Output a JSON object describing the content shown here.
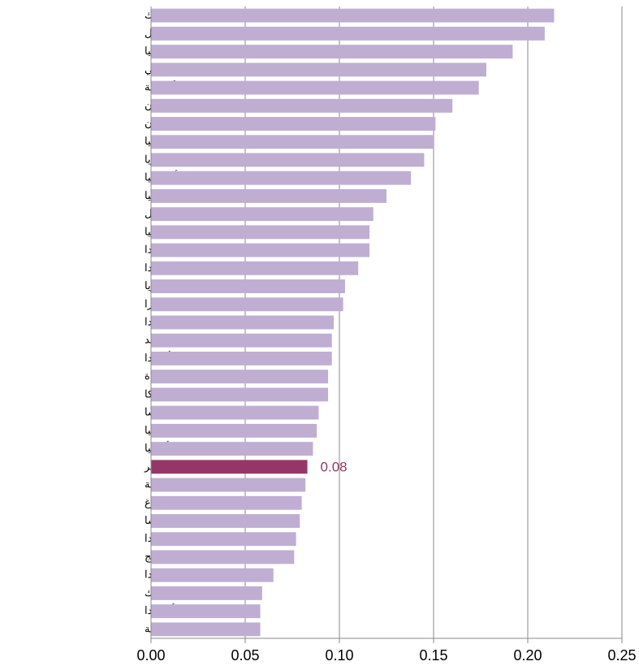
{
  "chart_data": {
    "type": "barh",
    "categories": [
      "المكسيك",
      "اسرائيل",
      "تركيا",
      "تشيلي",
      "الولايات المتحدة الأمريكية",
      "اليابان",
      "اليونان",
      "إسبانيا",
      "كوريا",
      "أستراليا",
      "إيطاليا",
      "البرتغال",
      "استونيا",
      "كندا",
      "بولندا",
      "هنغاريا",
      "سويسرا",
      "نيوزيلندا",
      "السويد",
      "أيرلندا",
      "المملكة المتحدة",
      "بلجيكا",
      "النمسا",
      "سلوفينيا",
      "ألمانيا",
      "قطر",
      "الجمهورية السلوفاكية",
      "لوكسمبورغ",
      "فرنسا",
      "هولندا",
      "النرويج",
      "فنلندا",
      "الدنمارك",
      "أيسلندا",
      "الجمهورية التشيكية"
    ],
    "values": [
      0.214,
      0.209,
      0.192,
      0.178,
      0.174,
      0.16,
      0.151,
      0.15,
      0.145,
      0.138,
      0.125,
      0.118,
      0.116,
      0.116,
      0.11,
      0.103,
      0.102,
      0.097,
      0.096,
      0.096,
      0.094,
      0.094,
      0.089,
      0.088,
      0.086,
      0.083,
      0.082,
      0.08,
      0.079,
      0.077,
      0.076,
      0.065,
      0.059,
      0.058,
      0.058
    ],
    "colors": [
      "#bfaed2",
      "#bfaed2",
      "#bfaed2",
      "#bfaed2",
      "#bfaed2",
      "#bfaed2",
      "#bfaed2",
      "#bfaed2",
      "#bfaed2",
      "#bfaed2",
      "#bfaed2",
      "#bfaed2",
      "#bfaed2",
      "#bfaed2",
      "#bfaed2",
      "#bfaed2",
      "#bfaed2",
      "#bfaed2",
      "#bfaed2",
      "#bfaed2",
      "#bfaed2",
      "#bfaed2",
      "#bfaed2",
      "#bfaed2",
      "#bfaed2",
      "#943767",
      "#bfaed2",
      "#bfaed2",
      "#bfaed2",
      "#bfaed2",
      "#bfaed2",
      "#bfaed2",
      "#bfaed2",
      "#bfaed2",
      "#bfaed2"
    ],
    "value_labels": [
      null,
      null,
      null,
      null,
      null,
      null,
      null,
      null,
      null,
      null,
      null,
      null,
      null,
      null,
      null,
      null,
      null,
      null,
      null,
      null,
      null,
      null,
      null,
      null,
      null,
      "0.08",
      null,
      null,
      null,
      null,
      null,
      null,
      null,
      null,
      null
    ],
    "xlim": [
      0,
      0.25
    ],
    "xticks": [
      {
        "value": 0,
        "label": "0.00"
      },
      {
        "value": 0.05,
        "label": "0.05"
      },
      {
        "value": 0.1,
        "label": "0.10"
      },
      {
        "value": 0.15,
        "label": "0.15"
      },
      {
        "value": 0.2,
        "label": "0.20"
      },
      {
        "value": 0.25,
        "label": "0.25"
      }
    ],
    "grid": true
  }
}
